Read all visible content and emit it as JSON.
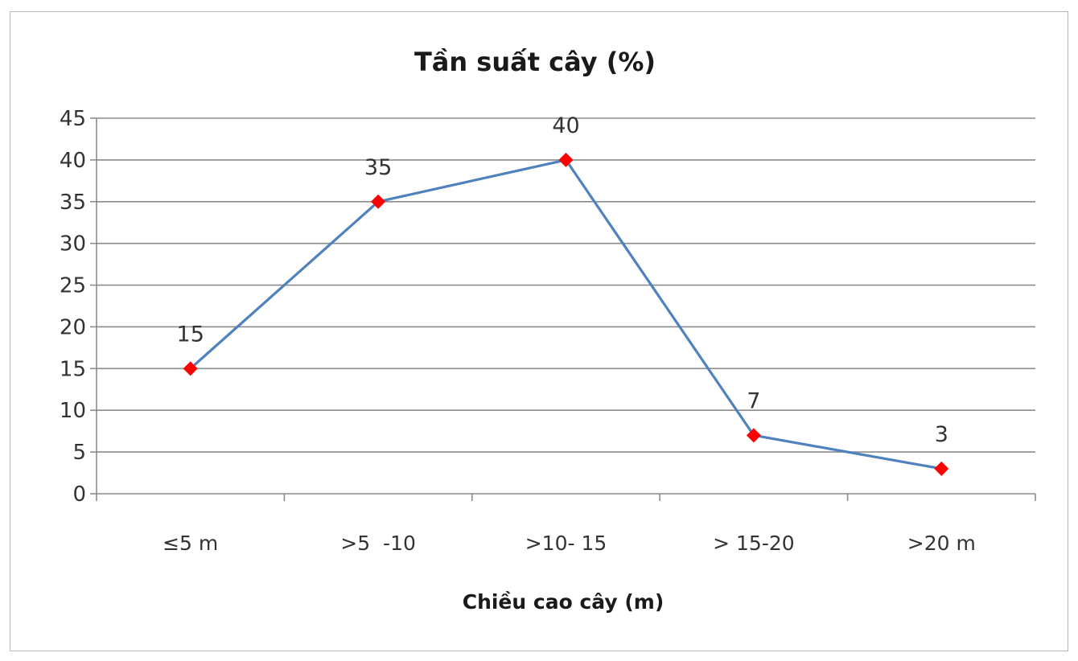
{
  "chart_data": {
    "type": "line",
    "title": "Tần suất cây (%)",
    "xlabel": "Chiều cao cây (m)",
    "ylabel": "",
    "ylim": [
      0,
      45
    ],
    "ytick_step": 5,
    "yticks": [
      "0",
      "5",
      "10",
      "15",
      "20",
      "25",
      "30",
      "35",
      "40",
      "45"
    ],
    "categories": [
      "≤5 m",
      ">5  -10",
      ">10- 15",
      "> 15-20",
      ">20 m"
    ],
    "series": [
      {
        "values": [
          15,
          35,
          40,
          7,
          3
        ],
        "data_labels": [
          "15",
          "35",
          "40",
          "7",
          "3"
        ],
        "line_color": "#4f81bd",
        "marker": "diamond",
        "marker_color": "#ff0000"
      }
    ],
    "grid": true,
    "legend": "none"
  }
}
